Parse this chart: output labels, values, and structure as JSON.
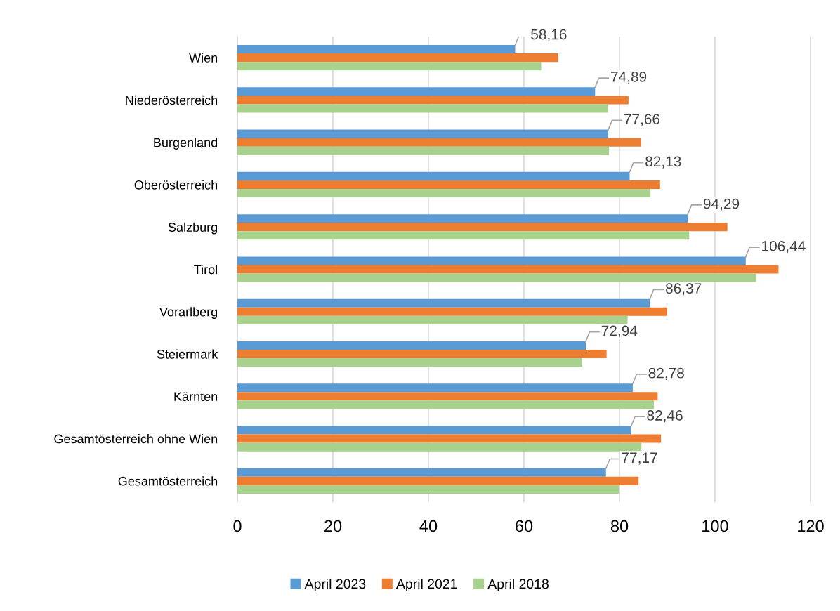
{
  "chart_data": {
    "type": "bar",
    "orientation": "horizontal",
    "categories": [
      "Wien",
      "Niederösterreich",
      "Burgenland",
      "Oberösterreich",
      "Salzburg",
      "Tirol",
      "Vorarlberg",
      "Steiermark",
      "Kärnten",
      "Gesamtösterreich ohne Wien",
      "Gesamtösterreich"
    ],
    "series": [
      {
        "name": "April 2023",
        "color": "#5b9bd5",
        "values": [
          58.16,
          74.89,
          77.66,
          82.13,
          94.29,
          106.44,
          86.37,
          72.94,
          82.78,
          82.46,
          77.17
        ],
        "value_labels": [
          "58,16",
          "74,89",
          "77,66",
          "82,13",
          "94,29",
          "106,44",
          "86,37",
          "72,94",
          "82,78",
          "82,46",
          "77,17"
        ]
      },
      {
        "name": "April 2021",
        "color": "#ed7d31",
        "values": [
          67.2,
          81.9,
          84.5,
          88.5,
          102.6,
          113.3,
          90.0,
          77.3,
          88.0,
          88.7,
          84.0
        ]
      },
      {
        "name": "April 2018",
        "color": "#a9d18e",
        "values": [
          63.6,
          77.6,
          77.8,
          86.5,
          94.6,
          108.6,
          81.7,
          72.2,
          87.2,
          84.6,
          79.9
        ]
      }
    ],
    "xlim": [
      0,
      120
    ],
    "xticks": [
      0,
      20,
      40,
      60,
      80,
      100,
      120
    ],
    "grid": "x",
    "legend": "bottom"
  }
}
